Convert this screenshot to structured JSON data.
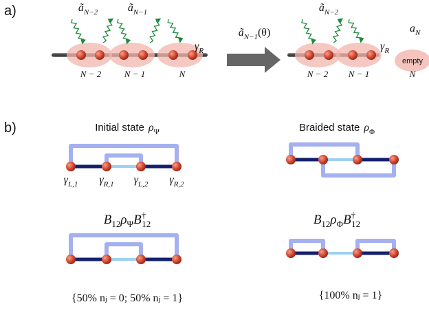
{
  "panel_a": {
    "label": "a)",
    "left": {
      "operators": [
        {
          "base": "ã",
          "sub": "N−2"
        },
        {
          "base": "ã",
          "sub": "N−1"
        }
      ],
      "gamma": {
        "base": "γ",
        "sub": "R"
      },
      "sites": [
        "N − 2",
        "N − 1",
        "N"
      ]
    },
    "arrow": {
      "base": "ã",
      "sub": "N−1",
      "arg": "(θ)"
    },
    "right": {
      "operators": [
        {
          "base": "ã",
          "sub": "N−2"
        }
      ],
      "gamma": {
        "base": "γ",
        "sub": "R"
      },
      "removed": {
        "base": "a",
        "sub": "N"
      },
      "empty": "empty",
      "sites": [
        "N − 2",
        "N − 1",
        "N"
      ]
    }
  },
  "panel_b": {
    "label": "b)",
    "initial": {
      "title": "Initial state",
      "rho": {
        "base": "ρ",
        "sub": "Ψ"
      },
      "gammas": [
        {
          "base": "γ",
          "sub": "L,1"
        },
        {
          "base": "γ",
          "sub": "R,1"
        },
        {
          "base": "γ",
          "sub": "L,2"
        },
        {
          "base": "γ",
          "sub": "R,2"
        }
      ],
      "operation": {
        "b": "B",
        "b_sub": "12",
        "rho": "ρ",
        "rho_sub": "Ψ",
        "dag": "†"
      },
      "result": "{50% nⱼ = 0;  50% nⱼ = 1}"
    },
    "braided": {
      "title": "Braided state",
      "rho": {
        "base": "ρ",
        "sub": "Φ"
      },
      "operation": {
        "b": "B",
        "b_sub": "12",
        "rho": "ρ",
        "rho_sub": "Φ",
        "dag": "†"
      },
      "result": "{100% nⱼ = 1}"
    }
  }
}
